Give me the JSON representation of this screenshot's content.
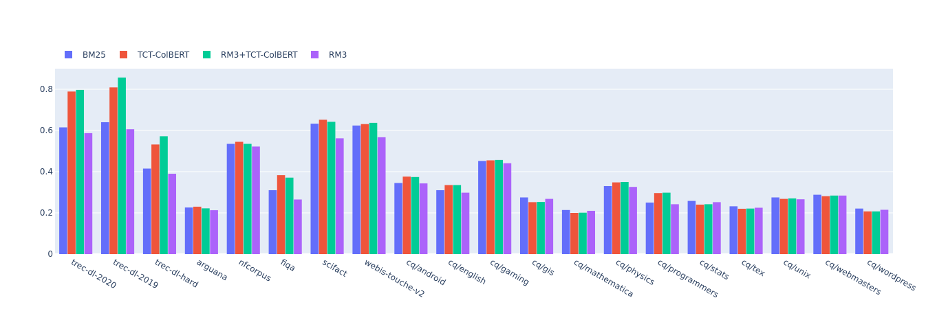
{
  "chart_data": {
    "type": "bar",
    "title": "",
    "xlabel": "",
    "ylabel": "",
    "ylim": [
      0,
      0.9
    ],
    "yticks": [
      {
        "value": 0,
        "label": "0"
      },
      {
        "value": 0.2,
        "label": "0.2"
      },
      {
        "value": 0.4,
        "label": "0.4"
      },
      {
        "value": 0.6,
        "label": "0.6"
      },
      {
        "value": 0.8,
        "label": "0.8"
      }
    ],
    "grid": true,
    "legend_position": "top-left, horizontal",
    "categories": [
      "trec-dl-2020",
      "trec-dl-2019",
      "trec-dl-hard",
      "arguana",
      "nfcorpus",
      "fiqa",
      "scifact",
      "webis-touche-v2",
      "cq/android",
      "cq/english",
      "cq/gaming",
      "cq/gis",
      "cq/mathematica",
      "cq/physics",
      "cq/programmers",
      "cq/stats",
      "cq/tex",
      "cq/unix",
      "cq/webmasters",
      "cq/wordpress"
    ],
    "series": [
      {
        "name": "BM25",
        "color": "#636efa",
        "values": [
          0.615,
          0.64,
          0.415,
          0.226,
          0.535,
          0.31,
          0.633,
          0.624,
          0.345,
          0.31,
          0.452,
          0.275,
          0.214,
          0.33,
          0.25,
          0.258,
          0.232,
          0.275,
          0.288,
          0.221
        ]
      },
      {
        "name": "TCT-ColBERT",
        "color": "#ef553b",
        "values": [
          0.789,
          0.809,
          0.532,
          0.23,
          0.545,
          0.383,
          0.652,
          0.631,
          0.376,
          0.335,
          0.455,
          0.252,
          0.2,
          0.348,
          0.296,
          0.24,
          0.22,
          0.268,
          0.281,
          0.207
        ]
      },
      {
        "name": "RM3+TCT-ColBERT",
        "color": "#00cc96",
        "values": [
          0.797,
          0.857,
          0.572,
          0.222,
          0.535,
          0.371,
          0.642,
          0.637,
          0.374,
          0.335,
          0.457,
          0.253,
          0.201,
          0.35,
          0.298,
          0.242,
          0.221,
          0.27,
          0.284,
          0.207
        ]
      },
      {
        "name": "RM3",
        "color": "#ab63fa",
        "values": [
          0.587,
          0.606,
          0.39,
          0.213,
          0.522,
          0.265,
          0.562,
          0.567,
          0.343,
          0.298,
          0.441,
          0.268,
          0.21,
          0.326,
          0.242,
          0.252,
          0.225,
          0.266,
          0.284,
          0.215
        ]
      }
    ]
  }
}
